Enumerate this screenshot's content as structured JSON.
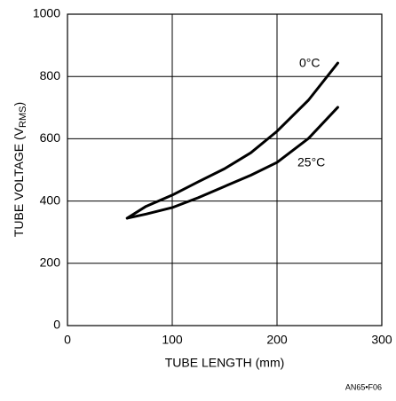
{
  "chart_data": {
    "type": "line",
    "xlabel": "TUBE LENGTH (mm)",
    "ylabel": [
      "TUBE VOLTAGE (V",
      "RMS",
      ")"
    ],
    "x": [
      57,
      75,
      100,
      125,
      150,
      175,
      200,
      230,
      258
    ],
    "series": [
      {
        "name": "0°C",
        "color": "#000000",
        "values": [
          345,
          383,
          419,
          462,
          504,
          555,
          624,
          724,
          843
        ]
      },
      {
        "name": "25°C",
        "color": "#000000",
        "values": [
          345,
          358,
          379,
          411,
          447,
          483,
          524,
          601,
          701
        ]
      }
    ],
    "xlim": [
      0,
      300
    ],
    "xticks": [
      0,
      100,
      200,
      300
    ],
    "ylim": [
      0,
      1000
    ],
    "yticks": [
      0,
      200,
      400,
      600,
      800,
      1000
    ],
    "grid": true,
    "annotations": [
      "AN65•F06"
    ]
  }
}
